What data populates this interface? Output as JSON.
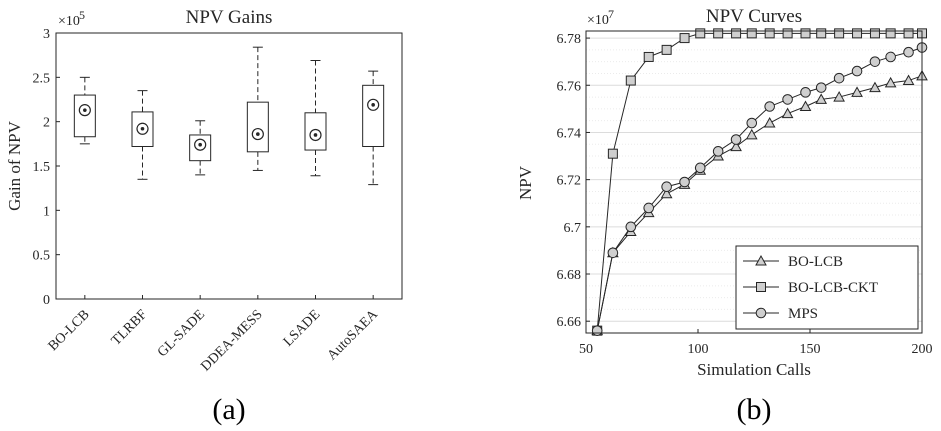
{
  "chart_data": [
    {
      "type": "box",
      "title": "NPV Gains",
      "xlabel": "",
      "ylabel": "Gain of NPV",
      "y_multiplier": "×10",
      "y_exponent": "5",
      "ylim": [
        0,
        3
      ],
      "yticks": [
        "0",
        "0.5",
        "1",
        "1.5",
        "2",
        "2.5",
        "3"
      ],
      "categories": [
        "BO-LCB",
        "TLRBF",
        "GL-SADE",
        "DDEA-MESS",
        "LSADE",
        "AutoSAEA"
      ],
      "boxes": [
        {
          "whisker_low": 1.75,
          "q1": 1.83,
          "median": 2.13,
          "q3": 2.3,
          "whisker_high": 2.5
        },
        {
          "whisker_low": 1.35,
          "q1": 1.72,
          "median": 1.92,
          "q3": 2.11,
          "whisker_high": 2.35
        },
        {
          "whisker_low": 1.4,
          "q1": 1.56,
          "median": 1.74,
          "q3": 1.85,
          "whisker_high": 2.01
        },
        {
          "whisker_low": 1.45,
          "q1": 1.66,
          "median": 1.86,
          "q3": 2.22,
          "whisker_high": 2.84
        },
        {
          "whisker_low": 1.39,
          "q1": 1.68,
          "median": 1.85,
          "q3": 2.1,
          "whisker_high": 2.69
        },
        {
          "whisker_low": 1.29,
          "q1": 1.72,
          "median": 2.19,
          "q3": 2.41,
          "whisker_high": 2.57
        }
      ],
      "grid": false,
      "panel_label": "(a)"
    },
    {
      "type": "line",
      "title": "NPV Curves",
      "xlabel": "Simulation Calls",
      "ylabel": "NPV",
      "y_multiplier": "×10",
      "y_exponent": "7",
      "xlim": [
        50,
        200
      ],
      "ylim": [
        6.655,
        6.783
      ],
      "xticks": [
        "50",
        "100",
        "150",
        "200"
      ],
      "yticks": [
        "6.66",
        "6.68",
        "6.7",
        "6.72",
        "6.74",
        "6.76",
        "6.78"
      ],
      "grid": true,
      "legend_position": "bottom-right",
      "series": [
        {
          "name": "BO-LCB",
          "marker": "triangle",
          "x": [
            55,
            62,
            70,
            78,
            86,
            94,
            101,
            109,
            117,
            124,
            132,
            140,
            148,
            155,
            163,
            171,
            179,
            186,
            194,
            200
          ],
          "y": [
            6.656,
            6.689,
            6.698,
            6.706,
            6.714,
            6.718,
            6.724,
            6.73,
            6.734,
            6.739,
            6.744,
            6.748,
            6.751,
            6.754,
            6.755,
            6.757,
            6.759,
            6.761,
            6.762,
            6.764
          ]
        },
        {
          "name": "BO-LCB-CKT",
          "marker": "square",
          "x": [
            55,
            62,
            70,
            78,
            86,
            94,
            101,
            109,
            117,
            124,
            132,
            140,
            148,
            155,
            163,
            171,
            179,
            186,
            194,
            200
          ],
          "y": [
            6.656,
            6.731,
            6.762,
            6.772,
            6.775,
            6.78,
            6.782,
            6.782,
            6.782,
            6.782,
            6.782,
            6.782,
            6.782,
            6.782,
            6.782,
            6.782,
            6.782,
            6.782,
            6.782,
            6.782
          ]
        },
        {
          "name": "MPS",
          "marker": "circle",
          "x": [
            55,
            62,
            70,
            78,
            86,
            94,
            101,
            109,
            117,
            124,
            132,
            140,
            148,
            155,
            163,
            171,
            179,
            186,
            194,
            200
          ],
          "y": [
            6.656,
            6.689,
            6.7,
            6.708,
            6.717,
            6.719,
            6.725,
            6.732,
            6.737,
            6.744,
            6.751,
            6.754,
            6.757,
            6.759,
            6.763,
            6.766,
            6.77,
            6.772,
            6.774,
            6.776
          ]
        }
      ],
      "panel_label": "(b)"
    }
  ]
}
